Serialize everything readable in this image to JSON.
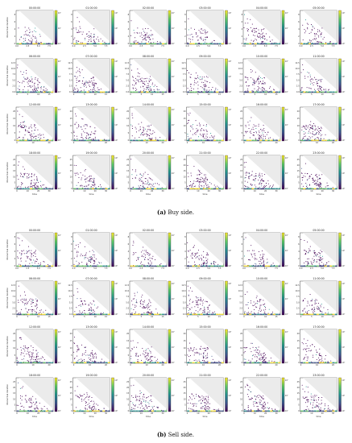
{
  "chart_data": [
    {
      "type": "heatmap",
      "caption_letter": "(a)",
      "caption_text": " Buy side.",
      "panels": [
        "00:00:00",
        "01:00:00",
        "02:00:00",
        "03:00:00",
        "04:00:00",
        "05:00:00",
        "06:00:00",
        "07:00:00",
        "08:00:00",
        "09:00:00",
        "10:00:00",
        "11:00:00",
        "12:00:00",
        "13:00:00",
        "14:00:00",
        "15:00:00",
        "16:00:00",
        "17:00:00",
        "18:00:00",
        "19:00:00",
        "20:00:00",
        "21:00:00",
        "22:00:00",
        "23:00:00"
      ],
      "xlabel": "time",
      "ylabel": "interarrival duration",
      "colorbar_ticks": [
        "10⁰",
        "10¹",
        "10²"
      ],
      "row_xmax": [
        7.5,
        15,
        20,
        30
      ],
      "row_x_ticks": [
        [
          "0.0",
          "2.5",
          "5.0",
          "7.5"
        ],
        [
          "0",
          "5",
          "10",
          "15"
        ],
        [
          "0",
          "10",
          "20"
        ],
        [
          "0",
          "10",
          "20",
          "30"
        ]
      ],
      "row_y_ticks": [
        [
          "0",
          "2",
          "4",
          "6",
          "8"
        ],
        [
          "0.0",
          "2.5",
          "5.0",
          "7.5",
          "10.0",
          "12.5"
        ],
        [
          "0",
          "5",
          "10",
          "15",
          "20"
        ],
        [
          "0",
          "5",
          "10",
          "15",
          "20",
          "25"
        ]
      ]
    },
    {
      "type": "heatmap",
      "caption_letter": "(b)",
      "caption_text": " Sell side.",
      "panels": [
        "00:00:00",
        "01:00:00",
        "02:00:00",
        "03:00:00",
        "04:00:00",
        "05:00:00",
        "06:00:00",
        "07:00:00",
        "08:00:00",
        "09:00:00",
        "10:00:00",
        "11:00:00",
        "12:00:00",
        "13:00:00",
        "14:00:00",
        "15:00:00",
        "16:00:00",
        "17:00:00",
        "18:00:00",
        "19:00:00",
        "20:00:00",
        "21:00:00",
        "22:00:00",
        "23:00:00"
      ],
      "xlabel": "time",
      "ylabel": "interarrival duration",
      "colorbar_ticks": [
        "10⁰",
        "10¹",
        "10²"
      ],
      "row_xmax": [
        7.5,
        15,
        20,
        30
      ],
      "row_x_ticks": [
        [
          "0.0",
          "2.5",
          "5.0",
          "7.5"
        ],
        [
          "0",
          "5",
          "10",
          "15"
        ],
        [
          "0",
          "10",
          "20"
        ],
        [
          "0",
          "10",
          "20",
          "30"
        ]
      ],
      "row_y_ticks": [
        [
          "0",
          "2",
          "4",
          "6",
          "8"
        ],
        [
          "0.0",
          "2.5",
          "5.0",
          "7.5",
          "10.0",
          "12.5"
        ],
        [
          "0",
          "5",
          "10",
          "15",
          "20"
        ],
        [
          "0",
          "5",
          "10",
          "15",
          "20",
          "25"
        ]
      ]
    }
  ],
  "colors": {
    "background_triangle": "#ebebeb",
    "viridis": [
      "#440154",
      "#3b528b",
      "#21908d",
      "#5dc963",
      "#fde725"
    ]
  }
}
